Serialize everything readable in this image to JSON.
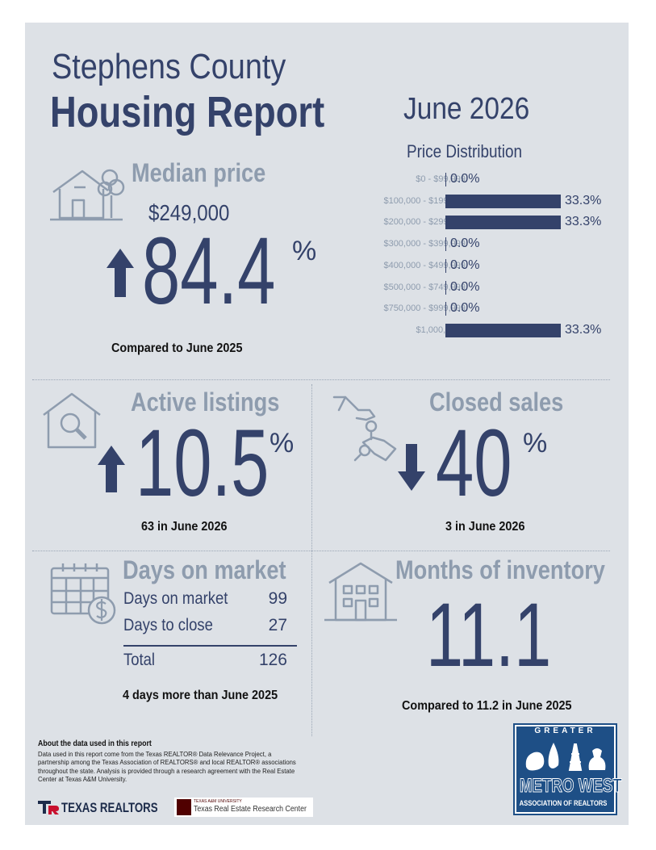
{
  "header": {
    "county": "Stephens County",
    "report_title": "Housing Report",
    "period": "June 2026"
  },
  "median_price": {
    "title": "Median price",
    "value": "$249,000",
    "change": "84.4",
    "percent_sign": "%",
    "direction": "up",
    "comparison": "Compared to June 2025"
  },
  "price_distribution": {
    "title": "Price Distribution",
    "rows": [
      {
        "range": "$0 - $99,999",
        "pct_label": "0.0%",
        "pct": 0.0
      },
      {
        "range": "$100,000 - $199,999",
        "pct_label": "33.3%",
        "pct": 33.3
      },
      {
        "range": "$200,000 - $299,999",
        "pct_label": "33.3%",
        "pct": 33.3
      },
      {
        "range": "$300,000 - $399,999",
        "pct_label": "0.0%",
        "pct": 0.0
      },
      {
        "range": "$400,000 - $499,999",
        "pct_label": "0.0%",
        "pct": 0.0
      },
      {
        "range": "$500,000 - $749,999",
        "pct_label": "0.0%",
        "pct": 0.0
      },
      {
        "range": "$750,000 - $999,999",
        "pct_label": "0.0%",
        "pct": 0.0
      },
      {
        "range": "$1,000,000+",
        "pct_label": "33.3%",
        "pct": 33.3
      }
    ]
  },
  "active_listings": {
    "title": "Active listings",
    "change": "10.5",
    "percent_sign": "%",
    "direction": "up",
    "note": "63 in June 2026"
  },
  "closed_sales": {
    "title": "Closed sales",
    "change": "40",
    "percent_sign": "%",
    "direction": "down",
    "note": "3 in June 2026"
  },
  "days_on_market": {
    "title": "Days on market",
    "rows": [
      {
        "label": "Days on market",
        "value": "99"
      },
      {
        "label": "Days to close",
        "value": "27"
      }
    ],
    "total_label": "Total",
    "total_value": "126",
    "note": "4 days more than June 2025"
  },
  "months_inventory": {
    "title": "Months of inventory",
    "value": "11.1",
    "note": "Compared to 11.2 in June 2025"
  },
  "footer": {
    "about_title": "About the data used in this report",
    "about_text": "Data used in this report come from the Texas REALTOR® Data Relevance Project, a partnership among the Texas Association of REALTORS® and local REALTOR® associations throughout the state. Analysis is provided through a research agreement with the Real Estate Center at Texas A&M University.",
    "logo_texas_realtors": "TEXAS REALTORS",
    "logo_tamu_small": "TEXAS A&M UNIVERSITY",
    "logo_tamu": "Texas Real Estate Research Center",
    "logo_metro_top": "GREATER",
    "logo_metro_main": "METRO WEST",
    "logo_metro_bottom": "ASSOCIATION OF REALTORS"
  },
  "colors": {
    "navy": "#34426a",
    "steel": "#8e9cae",
    "background": "#dde1e6"
  }
}
